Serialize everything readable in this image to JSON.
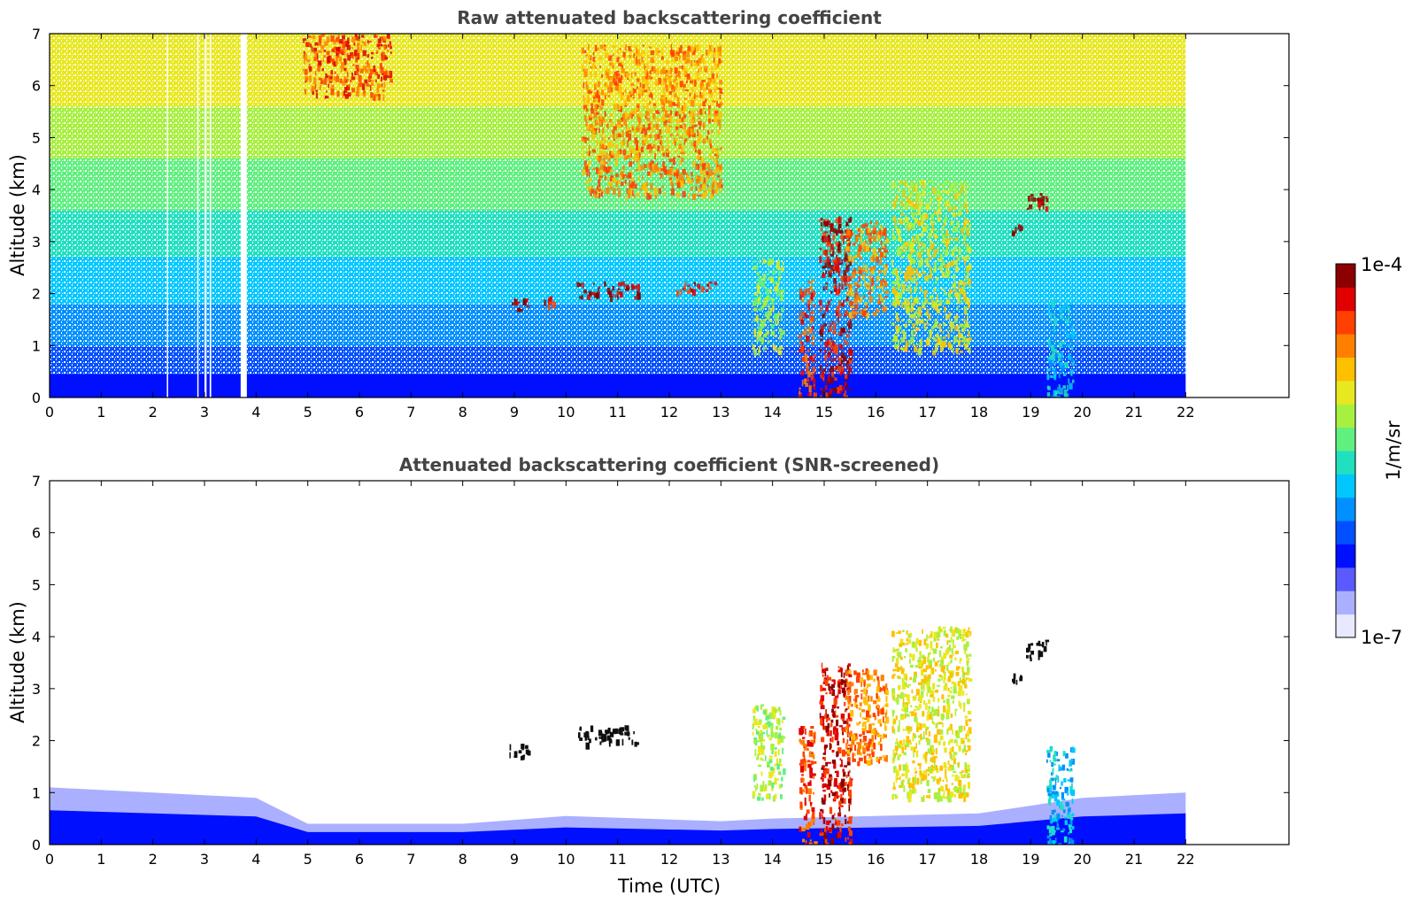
{
  "colors": {
    "scale": [
      "#e8e8ff",
      "#aab0ff",
      "#5a5aff",
      "#0010ff",
      "#0050ff",
      "#0090ff",
      "#00c8ff",
      "#20e0c0",
      "#60f080",
      "#a8f040",
      "#e8e820",
      "#ffc000",
      "#ff8000",
      "#ff4000",
      "#e00000",
      "#8b0000"
    ],
    "screened_black": "#101010",
    "frame": "#000000"
  },
  "chart_data": [
    {
      "type": "heatmap",
      "title": "Raw attenuated backscattering coefficient",
      "xlabel": "",
      "ylabel": "Altitude (km)",
      "xlim": [
        0,
        24
      ],
      "ylim": [
        0,
        7
      ],
      "xticks": [
        "0",
        "1",
        "2",
        "3",
        "4",
        "5",
        "6",
        "7",
        "8",
        "9",
        "10",
        "11",
        "12",
        "13",
        "14",
        "15",
        "16",
        "17",
        "18",
        "19",
        "20",
        "21",
        "22"
      ],
      "yticks": [
        "0",
        "1",
        "2",
        "3",
        "4",
        "5",
        "6",
        "7"
      ],
      "data_extent_hours": [
        0,
        22
      ],
      "gaps_hours": [
        [
          3.7,
          3.82
        ],
        [
          3.0,
          3.04
        ],
        [
          3.1,
          3.13
        ],
        [
          2.86,
          2.88
        ],
        [
          2.27,
          2.29
        ]
      ],
      "features": [
        {
          "kind": "aerosol_layer",
          "t": [
            8.9,
            9.3
          ],
          "alt_km": [
            1.7,
            1.95
          ],
          "level": 15
        },
        {
          "kind": "aerosol_layer",
          "t": [
            9.5,
            9.8
          ],
          "alt_km": [
            1.8,
            1.95
          ],
          "level": 14
        },
        {
          "kind": "aerosol_layer",
          "t": [
            10.2,
            11.4
          ],
          "alt_km": [
            1.95,
            2.25
          ],
          "level": 15
        },
        {
          "kind": "aerosol_layer",
          "t": [
            12.1,
            12.9
          ],
          "alt_km": [
            2.05,
            2.25
          ],
          "level": 14
        },
        {
          "kind": "cloud",
          "t": [
            14.5,
            14.8
          ],
          "alt_km": [
            0,
            2.3
          ],
          "level": 13
        },
        {
          "kind": "cloud",
          "t": [
            14.9,
            15.5
          ],
          "alt_km": [
            0,
            3.5
          ],
          "level": 14
        },
        {
          "kind": "cloud",
          "t": [
            15.4,
            16.2
          ],
          "alt_km": [
            1.6,
            3.4
          ],
          "level": 12
        },
        {
          "kind": "cloud",
          "t": [
            16.3,
            17.8
          ],
          "alt_km": [
            0.9,
            4.2
          ],
          "level": 10
        },
        {
          "kind": "cloud",
          "t": [
            13.6,
            14.2
          ],
          "alt_km": [
            0.9,
            2.7
          ],
          "level": 9
        },
        {
          "kind": "cloud",
          "t": [
            18.9,
            19.3
          ],
          "alt_km": [
            3.6,
            3.95
          ],
          "level": 15
        },
        {
          "kind": "cloud",
          "t": [
            18.6,
            18.8
          ],
          "alt_km": [
            3.15,
            3.35
          ],
          "level": 15
        },
        {
          "kind": "precipitation",
          "t": [
            19.3,
            19.8
          ],
          "alt_km": [
            0,
            1.9
          ],
          "level": 6
        },
        {
          "kind": "elevated_layer",
          "t": [
            4.9,
            6.6
          ],
          "alt_km": [
            5.8,
            7.0
          ],
          "level": 13
        },
        {
          "kind": "elevated_layer",
          "t": [
            10.3,
            13.0
          ],
          "alt_km": [
            3.9,
            6.8
          ],
          "level": 12
        }
      ]
    },
    {
      "type": "heatmap",
      "title": "Attenuated backscattering coefficient (SNR-screened)",
      "xlabel": "Time (UTC)",
      "ylabel": "Altitude (km)",
      "xlim": [
        0,
        24
      ],
      "ylim": [
        0,
        7
      ],
      "xticks": [
        "0",
        "1",
        "2",
        "3",
        "4",
        "5",
        "6",
        "7",
        "8",
        "9",
        "10",
        "11",
        "12",
        "13",
        "14",
        "15",
        "16",
        "17",
        "18",
        "19",
        "20",
        "21",
        "22"
      ],
      "yticks": [
        "0",
        "1",
        "2",
        "3",
        "4",
        "5",
        "6",
        "7"
      ],
      "data_extent_hours": [
        0,
        22
      ],
      "boundary_layer_top_km": [
        [
          0,
          1.1
        ],
        [
          2,
          1.0
        ],
        [
          4,
          0.9
        ],
        [
          5,
          0.4
        ],
        [
          8,
          0.4
        ],
        [
          10,
          0.55
        ],
        [
          13,
          0.45
        ],
        [
          14,
          0.5
        ],
        [
          18,
          0.6
        ],
        [
          20,
          0.9
        ],
        [
          22,
          1.0
        ]
      ],
      "features": [
        {
          "kind": "aerosol_layer",
          "t": [
            8.9,
            9.3
          ],
          "alt_km": [
            1.7,
            1.95
          ],
          "level": 99
        },
        {
          "kind": "aerosol_layer",
          "t": [
            10.2,
            11.4
          ],
          "alt_km": [
            1.95,
            2.3
          ],
          "level": 99
        },
        {
          "kind": "cloud",
          "t": [
            14.5,
            14.8
          ],
          "alt_km": [
            0,
            2.3
          ],
          "level": 13
        },
        {
          "kind": "cloud",
          "t": [
            14.9,
            15.5
          ],
          "alt_km": [
            0,
            3.5
          ],
          "level": 14
        },
        {
          "kind": "cloud",
          "t": [
            15.4,
            16.2
          ],
          "alt_km": [
            1.6,
            3.4
          ],
          "level": 12
        },
        {
          "kind": "cloud",
          "t": [
            16.3,
            17.8
          ],
          "alt_km": [
            0.9,
            4.2
          ],
          "level": 10
        },
        {
          "kind": "cloud",
          "t": [
            13.6,
            14.2
          ],
          "alt_km": [
            0.9,
            2.7
          ],
          "level": 9
        },
        {
          "kind": "cloud",
          "t": [
            18.9,
            19.3
          ],
          "alt_km": [
            3.6,
            3.95
          ],
          "level": 99
        },
        {
          "kind": "cloud",
          "t": [
            18.6,
            18.8
          ],
          "alt_km": [
            3.15,
            3.35
          ],
          "level": 99
        },
        {
          "kind": "precipitation",
          "t": [
            19.3,
            19.8
          ],
          "alt_km": [
            0,
            1.9
          ],
          "level": 6
        }
      ]
    }
  ],
  "colorbar": {
    "top_label": "1e-4",
    "bottom_label": "1e-7",
    "unit_label": "1/m/sr",
    "levels": 16
  }
}
